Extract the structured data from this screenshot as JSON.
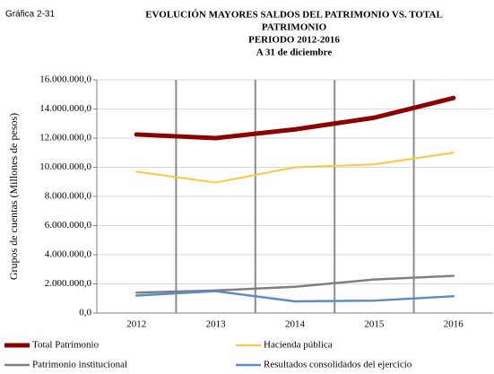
{
  "chart_data": {
    "type": "line",
    "label": "Gráfica 2-31",
    "title": [
      "EVOLUCIÓN  MAYORES  SALDOS DEL PATRIMONIO  VS. TOTAL",
      "PATRIMONIO",
      "PERIODO  2012-2016",
      "A 31 de diciembre"
    ],
    "y_label": "Grupos de cuentas (Millones de pesos)",
    "categories": [
      "2012",
      "2013",
      "2014",
      "2015",
      "2016"
    ],
    "series": [
      {
        "name": "Total Patrimonio",
        "color": "#8b0000",
        "values": [
          12250000,
          12000000,
          12600000,
          13400000,
          14750000
        ]
      },
      {
        "name": "Hacienda pública",
        "color": "#f8c93e",
        "values": [
          9700000,
          8950000,
          10000000,
          10200000,
          11000000
        ]
      },
      {
        "name": "Patrimonio institucional",
        "color": "#7f7f7f",
        "values": [
          1400000,
          1550000,
          1800000,
          2300000,
          2550000
        ]
      },
      {
        "name": "Resultados consolidados del ejercicio",
        "color": "#5b8bc9",
        "values": [
          1200000,
          1500000,
          800000,
          850000,
          1150000
        ]
      }
    ],
    "ylim": [
      0,
      16000000
    ],
    "yticks": [
      {
        "value": 0,
        "label": "0,0"
      },
      {
        "value": 2000000,
        "label": "2.000.000,0"
      },
      {
        "value": 4000000,
        "label": "4.000.000,0"
      },
      {
        "value": 6000000,
        "label": "6.000.000,0"
      },
      {
        "value": 8000000,
        "label": "8.000.000,0"
      },
      {
        "value": 10000000,
        "label": "10.000.000,0"
      },
      {
        "value": 12000000,
        "label": "12.000.000,0"
      },
      {
        "value": 14000000,
        "label": "14.000.000,0"
      },
      {
        "value": 16000000,
        "label": "16.000.000,0"
      }
    ],
    "grid": true
  }
}
